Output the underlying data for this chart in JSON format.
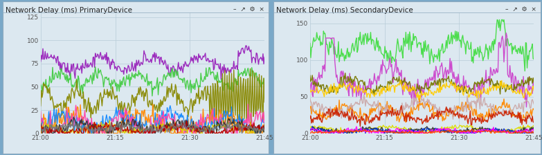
{
  "title1": "Network Delay (ms) PrimaryDevice",
  "title2": "Network Delay (ms) SecondaryDevice",
  "bg_outer": "#7aa8c8",
  "bg_panel": "#dce8f0",
  "bg_title": "#dce8f0",
  "bg_plot": "#dce8f0",
  "grid_color": "#b8ccd8",
  "ylim1": [
    0,
    130
  ],
  "ylim2": [
    0,
    165
  ],
  "yticks1": [
    0,
    25,
    50,
    75,
    100,
    125
  ],
  "yticks2": [
    0,
    50,
    100,
    150
  ],
  "xtick_labels": [
    "21:00",
    "21:15",
    "21:30",
    "21:45"
  ],
  "n_points": 300,
  "seed": 7,
  "primary_lines": [
    {
      "color": "#9922bb",
      "base": 75,
      "amp": 7,
      "freq": 2.2,
      "noise": 3.5
    },
    {
      "color": "#44cc44",
      "base": 58,
      "amp": 7,
      "freq": 3.0,
      "noise": 4
    },
    {
      "color": "#888800",
      "base": 36,
      "amp": 10,
      "freq": 3.5,
      "noise": 5
    },
    {
      "color": "#ff8800",
      "base": 9,
      "amp": 10,
      "freq": 1.5,
      "noise": 7
    },
    {
      "color": "#1188ff",
      "base": 13,
      "amp": 7,
      "freq": 2.0,
      "noise": 5
    },
    {
      "color": "#ff44aa",
      "base": 11,
      "amp": 7,
      "freq": 2.5,
      "noise": 5
    },
    {
      "color": "#ddcc00",
      "base": 5,
      "amp": 3,
      "freq": 1.8,
      "noise": 2.5
    },
    {
      "color": "#333333",
      "base": 7,
      "amp": 4,
      "freq": 2.2,
      "noise": 3
    },
    {
      "color": "#bb0000",
      "base": 4,
      "amp": 3,
      "freq": 1.5,
      "noise": 2.5
    },
    {
      "color": "#777777",
      "base": 6,
      "amp": 2,
      "freq": 2.0,
      "noise": 2.5
    }
  ],
  "secondary_lines": [
    {
      "color": "#44dd44",
      "base": 118,
      "amp": 10,
      "freq": 2.5,
      "noise": 7
    },
    {
      "color": "#cc44cc",
      "base": 72,
      "amp": 15,
      "freq": 2.0,
      "noise": 8
    },
    {
      "color": "#777700",
      "base": 66,
      "amp": 7,
      "freq": 2.5,
      "noise": 4
    },
    {
      "color": "#ffcc00",
      "base": 60,
      "amp": 5,
      "freq": 2.2,
      "noise": 3.5
    },
    {
      "color": "#ff8800",
      "base": 30,
      "amp": 7,
      "freq": 2.8,
      "noise": 4
    },
    {
      "color": "#ccaaaa",
      "base": 36,
      "amp": 7,
      "freq": 2.0,
      "noise": 4
    },
    {
      "color": "#cc2200",
      "base": 23,
      "amp": 5,
      "freq": 2.0,
      "noise": 3.5
    },
    {
      "color": "#dddd00",
      "base": 6,
      "amp": 3,
      "freq": 1.5,
      "noise": 1.5
    },
    {
      "color": "#333333",
      "base": 4,
      "amp": 2,
      "freq": 2.0,
      "noise": 1.5
    },
    {
      "color": "#0033cc",
      "base": 3,
      "amp": 2,
      "freq": 1.8,
      "noise": 1.5
    },
    {
      "color": "#ff00ff",
      "base": 3,
      "amp": 2,
      "freq": 2.5,
      "noise": 1.5
    },
    {
      "color": "#ff4400",
      "base": 2,
      "amp": 1,
      "freq": 1.0,
      "noise": 1.0
    }
  ]
}
